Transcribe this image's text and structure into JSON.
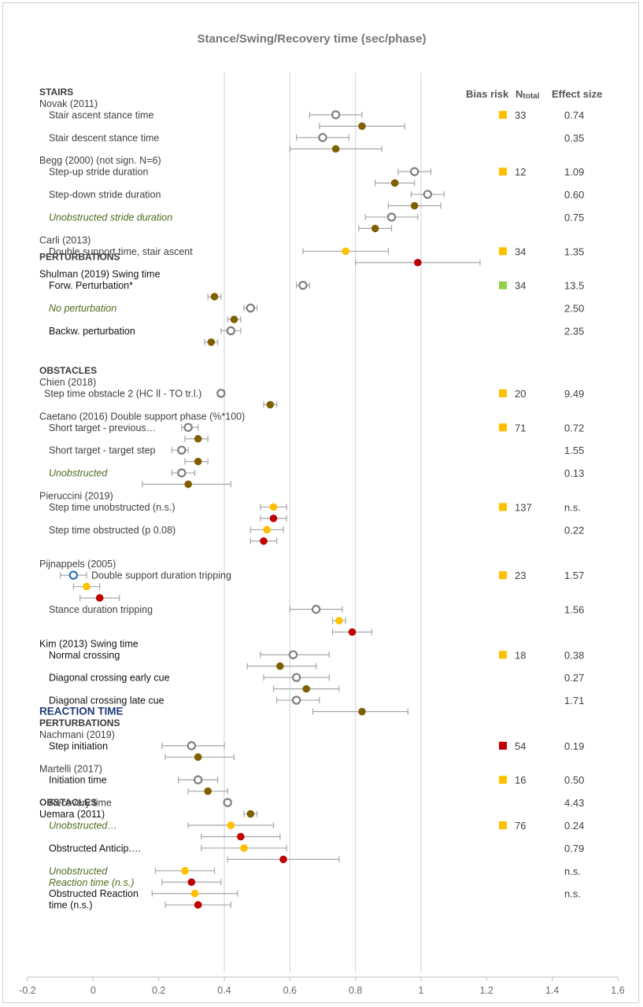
{
  "colors": {
    "grey_marker": "#7f7f7f",
    "brown": "#7f6000",
    "yellow": "#ffc000",
    "red": "#c00000",
    "blue": "#2e75b6",
    "green": "#92d050",
    "whisker": "#a6a6a6",
    "gridline": "#d9d9d9"
  },
  "chart_data": {
    "type": "scatter",
    "title": "Stance/Swing/Recovery time (sec/phase)",
    "xlim": [
      -0.2,
      1.6
    ],
    "xticks": [
      "-0.2",
      "0",
      "0.2",
      "0.4",
      "0.6",
      "0.8",
      "1",
      "1.2",
      "1.4",
      "1.6"
    ],
    "xtick_values": [
      -0.2,
      0,
      0.2,
      0.4,
      0.6,
      0.8,
      1,
      1.2,
      1.4,
      1.6
    ],
    "gridlines": [
      0.4,
      0.6,
      0.8,
      1.0
    ],
    "column_headers": {
      "bias": "Bias risk",
      "n": "N",
      "n_sub": "total",
      "effect": "Effect size"
    },
    "sections": [
      {
        "text": "STAIRS",
        "style": "sect",
        "row": 0
      },
      {
        "text": "PERTURBATIONS",
        "style": "sect",
        "row": 14.5
      },
      {
        "text": "OBSTACLES",
        "style": "sect",
        "row": 24.5
      },
      {
        "text": "REACTION TIME",
        "style": "sect-big",
        "row": 54.5
      },
      {
        "text": "PERTURBATIONS",
        "style": "sect",
        "row": 55.5
      },
      {
        "text": "OBSTACLES",
        "style": "sect",
        "row": 62.5
      }
    ],
    "labels": [
      {
        "text": "Novak (2011)",
        "row": 1,
        "indent": 0,
        "style": "lbl"
      },
      {
        "text": "Stair ascent stance time",
        "row": 2,
        "indent": 1,
        "style": "lbl"
      },
      {
        "text": "Stair descent stance time",
        "row": 4,
        "indent": 1,
        "style": "lbl"
      },
      {
        "text": "Begg (2000) (not sign. N=6)",
        "row": 6,
        "indent": 0,
        "style": "lbl"
      },
      {
        "text": "Step-up stride duration",
        "row": 7,
        "indent": 1,
        "style": "lbl"
      },
      {
        "text": "Step-down stride duration",
        "row": 9,
        "indent": 1,
        "style": "lbl"
      },
      {
        "text": "Unobstructed stride duration",
        "row": 11,
        "indent": 1,
        "style": "lbl-green"
      },
      {
        "text": "Carli (2013)",
        "row": 13,
        "indent": 0,
        "style": "lbl"
      },
      {
        "text": "Double support time, stair ascent",
        "row": 14,
        "indent": 1,
        "style": "lbl"
      },
      {
        "text": "Shulman (2019) Swing time",
        "row": 16,
        "indent": 0,
        "style": "lbl-dark"
      },
      {
        "text": "Forw. Perturbation*",
        "row": 17,
        "indent": 1,
        "style": "lbl-dark"
      },
      {
        "text": "No perturbation",
        "row": 19,
        "indent": 1,
        "style": "lbl-green"
      },
      {
        "text": "Backw. perturbation",
        "row": 21,
        "indent": 1,
        "style": "lbl-dark"
      },
      {
        "text": "Chien (2018)",
        "row": 25.5,
        "indent": 0,
        "style": "lbl"
      },
      {
        "text": "Step time obstacle 2 (HC ll - TO tr.l.)",
        "row": 26.5,
        "indent": 0.5,
        "style": "lbl"
      },
      {
        "text": "Caetano (2016) Double support phase (%*100)",
        "row": 28.5,
        "indent": 0,
        "style": "lbl"
      },
      {
        "text": "Short target - previous…",
        "row": 29.5,
        "indent": 1,
        "style": "lbl"
      },
      {
        "text": "Short target - target step",
        "row": 31.5,
        "indent": 1,
        "style": "lbl"
      },
      {
        "text": "Unobstructed",
        "row": 33.5,
        "indent": 1,
        "style": "lbl-green"
      },
      {
        "text": "Pieruccini (2019)",
        "row": 35.5,
        "indent": 0,
        "style": "lbl"
      },
      {
        "text": "Step time unobstructed (n.s.)",
        "row": 36.5,
        "indent": 1,
        "style": "lbl"
      },
      {
        "text": "Step time obstructed (p 0.08)",
        "row": 38.5,
        "indent": 1,
        "style": "lbl"
      },
      {
        "text": "Pijnappels (2005)",
        "row": 41.5,
        "indent": 0,
        "style": "lbl"
      },
      {
        "text": "Double support duration tripping",
        "row": 42.5,
        "indent": 5.5,
        "style": "lbl"
      },
      {
        "text": "Stance duration tripping",
        "row": 45.5,
        "indent": 1,
        "style": "lbl"
      },
      {
        "text": "Kim (2013) Swing time",
        "row": 48.5,
        "indent": 0,
        "style": "lbl-dark"
      },
      {
        "text": "Normal crossing",
        "row": 49.5,
        "indent": 1,
        "style": "lbl-dark"
      },
      {
        "text": "Diagonal crossing early cue",
        "row": 51.5,
        "indent": 1,
        "style": "lbl-dark"
      },
      {
        "text": "Diagonal crossing late cue",
        "row": 53.5,
        "indent": 1,
        "style": "lbl-dark"
      },
      {
        "text": "Nachmani (2019)",
        "row": 56.5,
        "indent": 0,
        "style": "lbl"
      },
      {
        "text": "Step initiation",
        "row": 57.5,
        "indent": 1,
        "style": "lbl-dark"
      },
      {
        "text": "Martelli (2017)",
        "row": 59.5,
        "indent": 0,
        "style": "lbl"
      },
      {
        "text": "Initiation time",
        "row": 60.5,
        "indent": 1,
        "style": "lbl-dark"
      },
      {
        "text": "Recovery time",
        "row": 62.5,
        "indent": 1,
        "style": "lbl"
      },
      {
        "text": "Uemara (2011)",
        "row": 63.5,
        "indent": 0,
        "style": "lbl-dark"
      },
      {
        "text": "Unobstructed…",
        "row": 64.5,
        "indent": 1,
        "style": "lbl-green"
      },
      {
        "text": "Obstructed Anticip.…",
        "row": 66.5,
        "indent": 1,
        "style": "lbl-dark"
      },
      {
        "text": "Unobstructed",
        "row": 68.5,
        "indent": 1,
        "style": "lbl-green"
      },
      {
        "text": "Reaction time (n.s.)",
        "row": 69.5,
        "indent": 1,
        "style": "lbl-green"
      },
      {
        "text": "Obstructed Reaction",
        "row": 70.5,
        "indent": 1,
        "style": "lbl-dark"
      },
      {
        "text": "time (n.s.)",
        "row": 71.5,
        "indent": 1,
        "style": "lbl-dark"
      }
    ],
    "points": [
      {
        "row": 2,
        "x": 0.74,
        "lo": 0.66,
        "hi": 0.82,
        "marker": "grey"
      },
      {
        "row": 3,
        "x": 0.82,
        "lo": 0.69,
        "hi": 0.95,
        "marker": "brown"
      },
      {
        "row": 4,
        "x": 0.7,
        "lo": 0.62,
        "hi": 0.78,
        "marker": "grey"
      },
      {
        "row": 5,
        "x": 0.74,
        "lo": 0.6,
        "hi": 0.88,
        "marker": "brown"
      },
      {
        "row": 7,
        "x": 0.98,
        "lo": 0.93,
        "hi": 1.03,
        "marker": "grey"
      },
      {
        "row": 8,
        "x": 0.92,
        "lo": 0.86,
        "hi": 0.98,
        "marker": "brown"
      },
      {
        "row": 9,
        "x": 1.02,
        "lo": 0.97,
        "hi": 1.07,
        "marker": "grey"
      },
      {
        "row": 10,
        "x": 0.98,
        "lo": 0.9,
        "hi": 1.06,
        "marker": "brown"
      },
      {
        "row": 11,
        "x": 0.91,
        "lo": 0.83,
        "hi": 0.99,
        "marker": "grey"
      },
      {
        "row": 12,
        "x": 0.86,
        "lo": 0.81,
        "hi": 0.91,
        "marker": "brown"
      },
      {
        "row": 14,
        "x": 0.77,
        "lo": 0.64,
        "hi": 0.9,
        "marker": "yellow"
      },
      {
        "row": 15,
        "x": 0.99,
        "lo": 0.8,
        "hi": 1.18,
        "marker": "red"
      },
      {
        "row": 17,
        "x": 0.64,
        "lo": 0.62,
        "hi": 0.66,
        "marker": "grey"
      },
      {
        "row": 18,
        "x": 0.37,
        "lo": 0.35,
        "hi": 0.39,
        "marker": "brown"
      },
      {
        "row": 19,
        "x": 0.48,
        "lo": 0.46,
        "hi": 0.5,
        "marker": "grey"
      },
      {
        "row": 20,
        "x": 0.43,
        "lo": 0.41,
        "hi": 0.45,
        "marker": "brown"
      },
      {
        "row": 21,
        "x": 0.42,
        "lo": 0.39,
        "hi": 0.45,
        "marker": "grey"
      },
      {
        "row": 22,
        "x": 0.36,
        "lo": 0.34,
        "hi": 0.38,
        "marker": "brown"
      },
      {
        "row": 26.5,
        "x": 0.39,
        "lo": 0.38,
        "hi": 0.4,
        "marker": "grey"
      },
      {
        "row": 27.5,
        "x": 0.54,
        "lo": 0.52,
        "hi": 0.56,
        "marker": "brown"
      },
      {
        "row": 29.5,
        "x": 0.29,
        "lo": 0.27,
        "hi": 0.32,
        "marker": "grey"
      },
      {
        "row": 30.5,
        "x": 0.32,
        "lo": 0.28,
        "hi": 0.35,
        "marker": "brown"
      },
      {
        "row": 31.5,
        "x": 0.27,
        "lo": 0.24,
        "hi": 0.29,
        "marker": "grey"
      },
      {
        "row": 32.5,
        "x": 0.32,
        "lo": 0.28,
        "hi": 0.35,
        "marker": "brown"
      },
      {
        "row": 33.5,
        "x": 0.27,
        "lo": 0.24,
        "hi": 0.31,
        "marker": "grey"
      },
      {
        "row": 34.5,
        "x": 0.29,
        "lo": 0.15,
        "hi": 0.42,
        "marker": "brown"
      },
      {
        "row": 36.5,
        "x": 0.55,
        "lo": 0.51,
        "hi": 0.59,
        "marker": "yellow"
      },
      {
        "row": 37.5,
        "x": 0.55,
        "lo": 0.51,
        "hi": 0.59,
        "marker": "red"
      },
      {
        "row": 38.5,
        "x": 0.53,
        "lo": 0.48,
        "hi": 0.58,
        "marker": "yellow"
      },
      {
        "row": 39.5,
        "x": 0.52,
        "lo": 0.48,
        "hi": 0.56,
        "marker": "red"
      },
      {
        "row": 42.5,
        "x": -0.06,
        "lo": -0.1,
        "hi": -0.02,
        "marker": "blue"
      },
      {
        "row": 43.5,
        "x": -0.02,
        "lo": -0.06,
        "hi": 0.02,
        "marker": "yellow"
      },
      {
        "row": 44.5,
        "x": 0.02,
        "lo": -0.04,
        "hi": 0.08,
        "marker": "red"
      },
      {
        "row": 45.5,
        "x": 0.68,
        "lo": 0.6,
        "hi": 0.76,
        "marker": "grey"
      },
      {
        "row": 46.5,
        "x": 0.75,
        "lo": 0.73,
        "hi": 0.77,
        "marker": "yellow"
      },
      {
        "row": 47.5,
        "x": 0.79,
        "lo": 0.73,
        "hi": 0.85,
        "marker": "red"
      },
      {
        "row": 49.5,
        "x": 0.61,
        "lo": 0.51,
        "hi": 0.72,
        "marker": "grey"
      },
      {
        "row": 50.5,
        "x": 0.57,
        "lo": 0.47,
        "hi": 0.68,
        "marker": "brown"
      },
      {
        "row": 51.5,
        "x": 0.62,
        "lo": 0.52,
        "hi": 0.72,
        "marker": "grey"
      },
      {
        "row": 52.5,
        "x": 0.65,
        "lo": 0.55,
        "hi": 0.75,
        "marker": "brown"
      },
      {
        "row": 53.5,
        "x": 0.62,
        "lo": 0.56,
        "hi": 0.69,
        "marker": "grey"
      },
      {
        "row": 54.5,
        "x": 0.82,
        "lo": 0.67,
        "hi": 0.96,
        "marker": "brown"
      },
      {
        "row": 57.5,
        "x": 0.3,
        "lo": 0.21,
        "hi": 0.4,
        "marker": "grey"
      },
      {
        "row": 58.5,
        "x": 0.32,
        "lo": 0.22,
        "hi": 0.43,
        "marker": "brown"
      },
      {
        "row": 60.5,
        "x": 0.32,
        "lo": 0.26,
        "hi": 0.38,
        "marker": "grey"
      },
      {
        "row": 61.5,
        "x": 0.35,
        "lo": 0.29,
        "hi": 0.41,
        "marker": "brown"
      },
      {
        "row": 62.5,
        "x": 0.41,
        "lo": 0.4,
        "hi": 0.42,
        "marker": "grey"
      },
      {
        "row": 63.5,
        "x": 0.48,
        "lo": 0.46,
        "hi": 0.5,
        "marker": "brown"
      },
      {
        "row": 64.5,
        "x": 0.42,
        "lo": 0.29,
        "hi": 0.55,
        "marker": "yellow"
      },
      {
        "row": 65.5,
        "x": 0.45,
        "lo": 0.33,
        "hi": 0.57,
        "marker": "red"
      },
      {
        "row": 66.5,
        "x": 0.46,
        "lo": 0.33,
        "hi": 0.59,
        "marker": "yellow"
      },
      {
        "row": 67.5,
        "x": 0.58,
        "lo": 0.41,
        "hi": 0.75,
        "marker": "red"
      },
      {
        "row": 68.5,
        "x": 0.28,
        "lo": 0.19,
        "hi": 0.37,
        "marker": "yellow"
      },
      {
        "row": 69.5,
        "x": 0.3,
        "lo": 0.21,
        "hi": 0.39,
        "marker": "red"
      },
      {
        "row": 70.5,
        "x": 0.31,
        "lo": 0.18,
        "hi": 0.44,
        "marker": "yellow"
      },
      {
        "row": 71.5,
        "x": 0.32,
        "lo": 0.22,
        "hi": 0.42,
        "marker": "red"
      }
    ],
    "bias": [
      {
        "row": 2,
        "color": "yellow"
      },
      {
        "row": 7,
        "color": "yellow"
      },
      {
        "row": 14,
        "color": "yellow"
      },
      {
        "row": 17,
        "color": "green"
      },
      {
        "row": 26.5,
        "color": "yellow"
      },
      {
        "row": 29.5,
        "color": "yellow"
      },
      {
        "row": 36.5,
        "color": "yellow"
      },
      {
        "row": 42.5,
        "color": "yellow"
      },
      {
        "row": 49.5,
        "color": "yellow"
      },
      {
        "row": 57.5,
        "color": "red"
      },
      {
        "row": 60.5,
        "color": "yellow"
      },
      {
        "row": 64.5,
        "color": "yellow"
      }
    ],
    "ntotal": [
      {
        "row": 2,
        "text": "33"
      },
      {
        "row": 7,
        "text": "12"
      },
      {
        "row": 14,
        "text": "34"
      },
      {
        "row": 17,
        "text": "34"
      },
      {
        "row": 26.5,
        "text": "20"
      },
      {
        "row": 29.5,
        "text": "71"
      },
      {
        "row": 36.5,
        "text": "137"
      },
      {
        "row": 42.5,
        "text": "23"
      },
      {
        "row": 49.5,
        "text": "18"
      },
      {
        "row": 57.5,
        "text": "54"
      },
      {
        "row": 60.5,
        "text": "16"
      },
      {
        "row": 64.5,
        "text": "76"
      }
    ],
    "effects": [
      {
        "row": 2,
        "text": "0.74"
      },
      {
        "row": 4,
        "text": "0.35"
      },
      {
        "row": 7,
        "text": "1.09"
      },
      {
        "row": 9,
        "text": "0.60"
      },
      {
        "row": 11,
        "text": "0.75"
      },
      {
        "row": 14,
        "text": "1.35"
      },
      {
        "row": 17,
        "text": "13.5"
      },
      {
        "row": 19,
        "text": "2.50"
      },
      {
        "row": 21,
        "text": "2.35"
      },
      {
        "row": 26.5,
        "text": "9.49"
      },
      {
        "row": 29.5,
        "text": "0.72"
      },
      {
        "row": 31.5,
        "text": "1.55"
      },
      {
        "row": 33.5,
        "text": "0.13"
      },
      {
        "row": 36.5,
        "text": "n.s."
      },
      {
        "row": 38.5,
        "text": "0.22"
      },
      {
        "row": 42.5,
        "text": "1.57"
      },
      {
        "row": 45.5,
        "text": "1.56"
      },
      {
        "row": 49.5,
        "text": "0.38"
      },
      {
        "row": 51.5,
        "text": "0.27"
      },
      {
        "row": 53.5,
        "text": "1.71"
      },
      {
        "row": 57.5,
        "text": "0.19"
      },
      {
        "row": 60.5,
        "text": "0.50"
      },
      {
        "row": 62.5,
        "text": "4.43"
      },
      {
        "row": 64.5,
        "text": "0.24"
      },
      {
        "row": 66.5,
        "text": "0.79"
      },
      {
        "row": 68.5,
        "text": "n.s."
      },
      {
        "row": 70.5,
        "text": "n.s."
      }
    ]
  }
}
